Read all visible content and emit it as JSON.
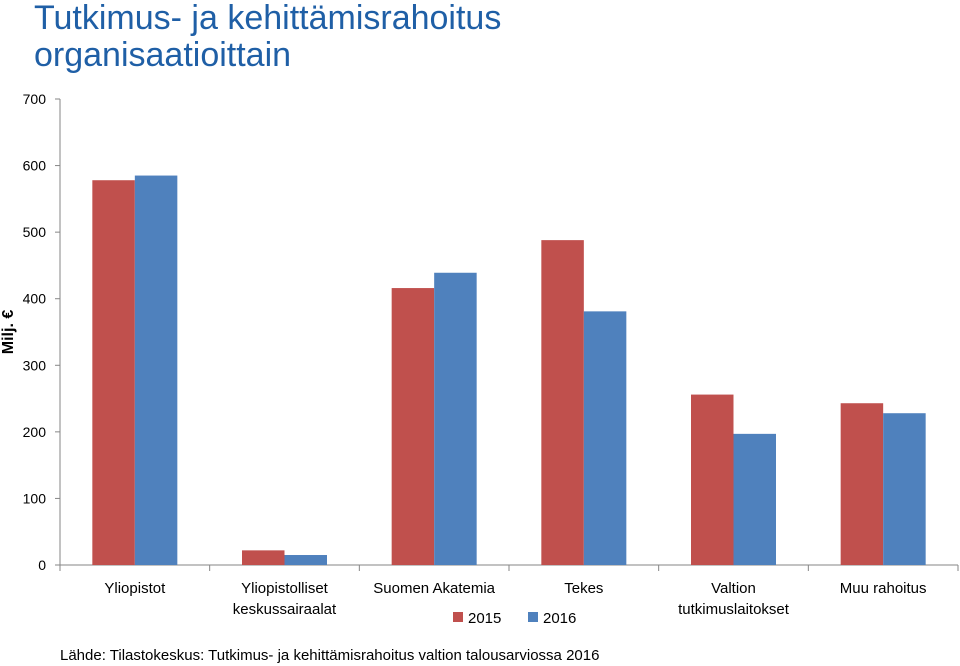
{
  "title_lines": [
    "Tutkimus- ja kehittämisrahoitus",
    "organisaatioittain"
  ],
  "source": "Lähde: Tilastokeskus: Tutkimus- ja kehittämisrahoitus valtion talousarviossa 2016",
  "chart_data": {
    "type": "bar",
    "title": "Tutkimus- ja kehittämisrahoitus organisaatioittain",
    "ylabel": "Milj. €",
    "xlabel": "",
    "ylim": [
      0,
      700
    ],
    "yticks": [
      0,
      100,
      200,
      300,
      400,
      500,
      600,
      700
    ],
    "grid": false,
    "legend_position": "bottom",
    "categories": [
      [
        "Yliopistot"
      ],
      [
        "Yliopistolliset",
        "keskussairaalat"
      ],
      [
        "Suomen Akatemia"
      ],
      [
        "Tekes"
      ],
      [
        "Valtion",
        "tutkimuslaitokset"
      ],
      [
        "Muu rahoitus"
      ]
    ],
    "series": [
      {
        "name": "2015",
        "color": "#c0504d",
        "values": [
          578,
          22,
          416,
          488,
          256,
          243
        ]
      },
      {
        "name": "2016",
        "color": "#4f81bd",
        "values": [
          585,
          15,
          439,
          381,
          197,
          228
        ]
      }
    ]
  }
}
